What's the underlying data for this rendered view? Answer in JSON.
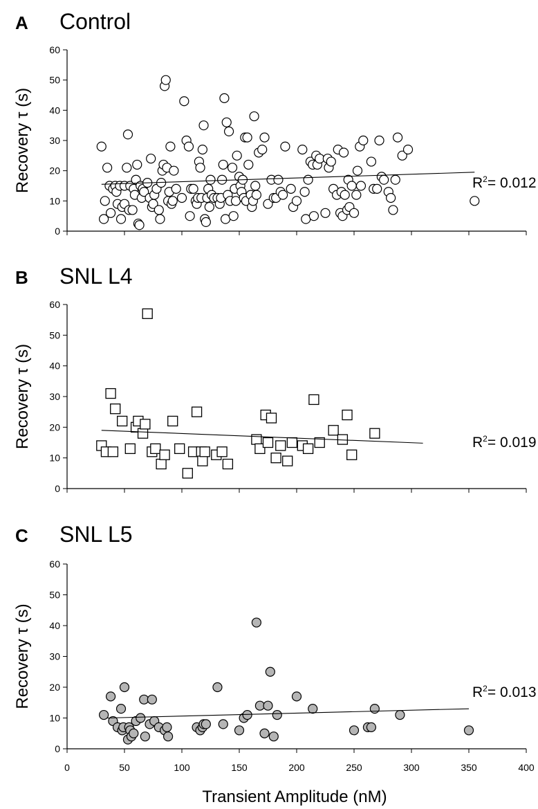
{
  "chart_data": [
    {
      "type": "scatter",
      "panel": "A",
      "title": "Control",
      "ylabel": "Recovery τ (s)",
      "xlabel": "",
      "xlim": [
        0,
        400
      ],
      "ylim": [
        0,
        60
      ],
      "yticks": [
        "0",
        "10",
        "20",
        "30",
        "40",
        "50",
        "60"
      ],
      "marker": "open-circle",
      "marker_fill": "#ffffff",
      "annotation_prefix": "R",
      "annotation_sup": "2",
      "annotation_value": "= 0.012",
      "trendline": {
        "x": [
          30,
          355
        ],
        "y": [
          15.5,
          19.5
        ]
      },
      "points": [
        [
          30,
          28
        ],
        [
          32,
          4
        ],
        [
          33,
          10
        ],
        [
          35,
          21
        ],
        [
          37,
          15
        ],
        [
          38,
          6
        ],
        [
          40,
          14
        ],
        [
          42,
          15
        ],
        [
          43,
          13
        ],
        [
          44,
          9
        ],
        [
          46,
          15
        ],
        [
          47,
          4
        ],
        [
          48,
          8
        ],
        [
          50,
          9
        ],
        [
          50,
          15
        ],
        [
          52,
          21
        ],
        [
          53,
          32
        ],
        [
          54,
          7
        ],
        [
          55,
          15
        ],
        [
          57,
          7
        ],
        [
          58,
          14
        ],
        [
          59,
          12
        ],
        [
          60,
          17
        ],
        [
          61,
          22
        ],
        [
          62,
          2.5
        ],
        [
          63,
          2
        ],
        [
          64,
          15
        ],
        [
          65,
          11
        ],
        [
          66,
          14
        ],
        [
          67,
          13
        ],
        [
          70,
          16
        ],
        [
          72,
          11
        ],
        [
          73,
          24
        ],
        [
          74,
          8
        ],
        [
          75,
          9
        ],
        [
          76,
          12
        ],
        [
          78,
          14
        ],
        [
          80,
          7
        ],
        [
          81,
          4
        ],
        [
          82,
          16
        ],
        [
          83,
          20
        ],
        [
          84,
          22
        ],
        [
          85,
          48
        ],
        [
          86,
          50
        ],
        [
          87,
          21
        ],
        [
          88,
          10
        ],
        [
          89,
          13
        ],
        [
          90,
          28
        ],
        [
          91,
          9
        ],
        [
          92,
          10
        ],
        [
          93,
          20
        ],
        [
          95,
          14
        ],
        [
          100,
          11
        ],
        [
          102,
          43
        ],
        [
          104,
          30
        ],
        [
          106,
          28
        ],
        [
          107,
          5
        ],
        [
          108,
          14
        ],
        [
          110,
          14
        ],
        [
          112,
          10
        ],
        [
          113,
          9
        ],
        [
          114,
          11
        ],
        [
          115,
          23
        ],
        [
          116,
          21
        ],
        [
          117,
          11
        ],
        [
          118,
          27
        ],
        [
          119,
          35
        ],
        [
          120,
          4
        ],
        [
          121,
          3
        ],
        [
          122,
          11
        ],
        [
          123,
          14
        ],
        [
          124,
          8
        ],
        [
          125,
          17
        ],
        [
          126,
          12
        ],
        [
          128,
          11
        ],
        [
          131,
          11
        ],
        [
          133,
          9
        ],
        [
          134,
          11
        ],
        [
          135,
          17
        ],
        [
          136,
          22
        ],
        [
          137,
          44
        ],
        [
          138,
          4
        ],
        [
          139,
          36
        ],
        [
          140,
          12
        ],
        [
          141,
          33
        ],
        [
          142,
          10
        ],
        [
          144,
          21
        ],
        [
          145,
          5
        ],
        [
          146,
          14
        ],
        [
          147,
          10
        ],
        [
          148,
          25
        ],
        [
          150,
          18
        ],
        [
          151,
          15
        ],
        [
          152,
          13
        ],
        [
          153,
          17
        ],
        [
          154,
          11
        ],
        [
          155,
          31
        ],
        [
          156,
          10
        ],
        [
          157,
          31
        ],
        [
          158,
          22
        ],
        [
          160,
          12
        ],
        [
          161,
          8
        ],
        [
          162,
          10
        ],
        [
          163,
          38
        ],
        [
          164,
          15
        ],
        [
          165,
          12
        ],
        [
          167,
          26
        ],
        [
          170,
          27
        ],
        [
          172,
          31
        ],
        [
          175,
          9
        ],
        [
          178,
          17
        ],
        [
          180,
          11
        ],
        [
          182,
          11
        ],
        [
          184,
          17
        ],
        [
          186,
          13
        ],
        [
          188,
          12
        ],
        [
          190,
          28
        ],
        [
          195,
          14
        ],
        [
          197,
          8
        ],
        [
          200,
          10
        ],
        [
          205,
          27
        ],
        [
          207,
          13
        ],
        [
          208,
          4
        ],
        [
          210,
          17
        ],
        [
          212,
          23
        ],
        [
          214,
          22
        ],
        [
          215,
          5
        ],
        [
          217,
          25
        ],
        [
          218,
          22
        ],
        [
          220,
          24
        ],
        [
          225,
          6
        ],
        [
          227,
          24
        ],
        [
          228,
          21
        ],
        [
          230,
          23
        ],
        [
          232,
          14
        ],
        [
          235,
          12
        ],
        [
          236,
          27
        ],
        [
          238,
          6
        ],
        [
          239,
          13
        ],
        [
          240,
          5
        ],
        [
          241,
          26
        ],
        [
          242,
          12
        ],
        [
          244,
          7
        ],
        [
          245,
          17
        ],
        [
          246,
          8
        ],
        [
          248,
          15
        ],
        [
          250,
          6
        ],
        [
          252,
          12
        ],
        [
          253,
          20
        ],
        [
          255,
          28
        ],
        [
          256,
          15
        ],
        [
          258,
          30
        ],
        [
          265,
          23
        ],
        [
          267,
          14
        ],
        [
          270,
          14
        ],
        [
          272,
          30
        ],
        [
          274,
          18
        ],
        [
          276,
          17
        ],
        [
          280,
          13
        ],
        [
          282,
          11
        ],
        [
          284,
          7
        ],
        [
          286,
          17
        ],
        [
          288,
          31
        ],
        [
          292,
          25
        ],
        [
          297,
          27
        ],
        [
          355,
          10
        ]
      ]
    },
    {
      "type": "scatter",
      "panel": "B",
      "title": "SNL L4",
      "ylabel": "Recovery τ (s)",
      "xlabel": "",
      "xlim": [
        0,
        400
      ],
      "ylim": [
        0,
        60
      ],
      "yticks": [
        "0",
        "10",
        "20",
        "30",
        "40",
        "50",
        "60"
      ],
      "marker": "open-square",
      "marker_fill": "#ffffff",
      "annotation_prefix": "R",
      "annotation_sup": "2",
      "annotation_value": "= 0.019",
      "trendline": {
        "x": [
          30,
          310
        ],
        "y": [
          19,
          14.8
        ]
      },
      "points": [
        [
          30,
          14
        ],
        [
          34,
          12
        ],
        [
          38,
          31
        ],
        [
          40,
          12
        ],
        [
          42,
          26
        ],
        [
          48,
          22
        ],
        [
          55,
          13
        ],
        [
          60,
          20
        ],
        [
          62,
          22
        ],
        [
          66,
          18
        ],
        [
          68,
          21
        ],
        [
          70,
          57
        ],
        [
          74,
          12
        ],
        [
          77,
          13
        ],
        [
          82,
          8
        ],
        [
          85,
          11
        ],
        [
          92,
          22
        ],
        [
          98,
          13
        ],
        [
          105,
          5
        ],
        [
          110,
          12
        ],
        [
          113,
          25
        ],
        [
          117,
          12
        ],
        [
          118,
          9
        ],
        [
          120,
          12
        ],
        [
          130,
          11
        ],
        [
          135,
          12
        ],
        [
          140,
          8
        ],
        [
          165,
          16
        ],
        [
          168,
          13
        ],
        [
          173,
          24
        ],
        [
          175,
          15
        ],
        [
          178,
          23
        ],
        [
          182,
          10
        ],
        [
          186,
          14
        ],
        [
          192,
          9
        ],
        [
          196,
          15
        ],
        [
          205,
          14
        ],
        [
          210,
          13
        ],
        [
          215,
          29
        ],
        [
          220,
          15
        ],
        [
          232,
          19
        ],
        [
          240,
          16
        ],
        [
          244,
          24
        ],
        [
          248,
          11
        ],
        [
          268,
          18
        ]
      ]
    },
    {
      "type": "scatter",
      "panel": "C",
      "title": "SNL L5",
      "ylabel": "Recovery τ (s)",
      "xlabel": "Transient Amplitude (nM)",
      "xlim": [
        0,
        400
      ],
      "ylim": [
        0,
        60
      ],
      "xticks": [
        "0",
        "50",
        "100",
        "150",
        "200",
        "250",
        "300",
        "350",
        "400"
      ],
      "yticks": [
        "0",
        "10",
        "20",
        "30",
        "40",
        "50",
        "60"
      ],
      "marker": "filled-circle",
      "marker_fill": "#b5b5b5",
      "annotation_prefix": "R",
      "annotation_sup": "2",
      "annotation_value": "= 0.013",
      "trendline": {
        "x": [
          35,
          350
        ],
        "y": [
          10,
          13
        ]
      },
      "points": [
        [
          32,
          11
        ],
        [
          38,
          17
        ],
        [
          40,
          9
        ],
        [
          44,
          7
        ],
        [
          47,
          13
        ],
        [
          48,
          6
        ],
        [
          49,
          7
        ],
        [
          50,
          20
        ],
        [
          53,
          3
        ],
        [
          54,
          7
        ],
        [
          55,
          6
        ],
        [
          56,
          4
        ],
        [
          58,
          5
        ],
        [
          60,
          9
        ],
        [
          64,
          10
        ],
        [
          67,
          16
        ],
        [
          68,
          4
        ],
        [
          72,
          8
        ],
        [
          74,
          16
        ],
        [
          76,
          9
        ],
        [
          80,
          7
        ],
        [
          85,
          6
        ],
        [
          87,
          7
        ],
        [
          88,
          4
        ],
        [
          113,
          7
        ],
        [
          116,
          6
        ],
        [
          118,
          7
        ],
        [
          119,
          8
        ],
        [
          121,
          8
        ],
        [
          131,
          20
        ],
        [
          136,
          8
        ],
        [
          150,
          6
        ],
        [
          154,
          10
        ],
        [
          157,
          11
        ],
        [
          165,
          41
        ],
        [
          168,
          14
        ],
        [
          172,
          5
        ],
        [
          175,
          14
        ],
        [
          177,
          25
        ],
        [
          180,
          4
        ],
        [
          183,
          11
        ],
        [
          200,
          17
        ],
        [
          214,
          13
        ],
        [
          250,
          6
        ],
        [
          262,
          7
        ],
        [
          265,
          7
        ],
        [
          268,
          13
        ],
        [
          290,
          11
        ],
        [
          350,
          6
        ]
      ]
    }
  ]
}
